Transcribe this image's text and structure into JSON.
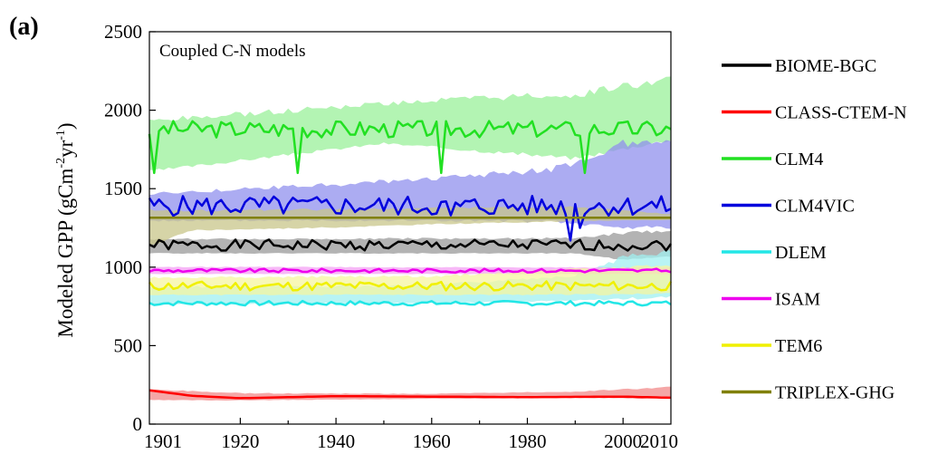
{
  "panel_label": "(a)",
  "chart_data": {
    "type": "line",
    "title": "",
    "inset_text": "Coupled C-N models",
    "ylabel": "Modeled GPP (gCm⁻²yr⁻¹)",
    "ylabel_parts": {
      "main": "Modeled GPP (gCm",
      "sup1": "-2",
      "mid": "yr",
      "sup2": "-1",
      "end": ")"
    },
    "xlabel": "",
    "xlim": [
      1901,
      2010
    ],
    "ylim": [
      0,
      2500
    ],
    "xticks": [
      1901,
      1920,
      1940,
      1960,
      1980,
      2000,
      2010
    ],
    "yticks": [
      0,
      500,
      1000,
      1500,
      2000,
      2500
    ],
    "grid": false,
    "legend_position": "right",
    "shaded_band": "range between model simulations",
    "series": [
      {
        "name": "BIOME-BGC",
        "color": "#000000",
        "band_color": "#9a9a9a",
        "base": 1140,
        "amp": 35,
        "seed": 1,
        "band": [
          [
            1901,
            1085,
            1185
          ],
          [
            1990,
            1085,
            1190
          ],
          [
            2000,
            1040,
            1230
          ],
          [
            2010,
            1060,
            1240
          ]
        ]
      },
      {
        "name": "CLASS-CTEM-N",
        "color": "#ff0000",
        "band_color": "#f28a8a",
        "curve": [
          [
            1901,
            215
          ],
          [
            1910,
            180
          ],
          [
            1920,
            165
          ],
          [
            1940,
            178
          ],
          [
            1960,
            175
          ],
          [
            1980,
            172
          ],
          [
            2000,
            175
          ],
          [
            2010,
            168
          ]
        ],
        "band": [
          [
            1901,
            150,
            225
          ],
          [
            1920,
            150,
            200
          ],
          [
            1960,
            160,
            195
          ],
          [
            1990,
            165,
            210
          ],
          [
            2010,
            160,
            240
          ]
        ]
      },
      {
        "name": "CLM4",
        "color": "#22e022",
        "band_color": "#99f099",
        "base": 1880,
        "amp": 55,
        "seed": 3,
        "dips": [
          [
            1902,
            1600
          ],
          [
            1932,
            1600
          ],
          [
            1962,
            1600
          ],
          [
            1992,
            1600
          ]
        ],
        "band": [
          [
            1901,
            1600,
            1950
          ],
          [
            1950,
            1780,
            2060
          ],
          [
            1990,
            1680,
            2130
          ],
          [
            2010,
            1800,
            2220
          ]
        ]
      },
      {
        "name": "CLM4VIC",
        "color": "#0000dd",
        "band_color": "#9090ee",
        "base": 1390,
        "amp": 65,
        "seed": 5,
        "dips": [
          [
            1964,
            1330
          ],
          [
            1989,
            1170
          ],
          [
            1991,
            1250
          ]
        ],
        "band": [
          [
            1901,
            1290,
            1480
          ],
          [
            1950,
            1290,
            1560
          ],
          [
            1985,
            1280,
            1640
          ],
          [
            2000,
            1230,
            1820
          ],
          [
            2010,
            1240,
            1860
          ]
        ]
      },
      {
        "name": "DLEM",
        "color": "#22e6e6",
        "band_color": "#a0f0f0",
        "base": 770,
        "amp": 15,
        "seed": 7,
        "band": [
          [
            1901,
            760,
            880
          ],
          [
            1960,
            770,
            890
          ],
          [
            1990,
            780,
            960
          ],
          [
            2000,
            790,
            1080
          ],
          [
            2010,
            800,
            1120
          ]
        ]
      },
      {
        "name": "ISAM",
        "color": "#ee00ee",
        "band_color": "#f4a0f4",
        "base": 978,
        "amp": 12,
        "seed": 9,
        "band": [
          [
            1901,
            955,
            1005
          ],
          [
            2010,
            955,
            1000
          ]
        ]
      },
      {
        "name": "TEM6",
        "color": "#f0f000",
        "band_color": "#f6f6a0",
        "base": 880,
        "amp": 30,
        "seed": 11,
        "band": [
          [
            1901,
            820,
            940
          ],
          [
            1960,
            820,
            950
          ],
          [
            2000,
            820,
            1010
          ],
          [
            2010,
            830,
            1020
          ]
        ]
      },
      {
        "name": "TRIPLEX-GHG",
        "color": "#808000",
        "band_color": "#c8c68a",
        "curve": [
          [
            1901,
            1315
          ],
          [
            2010,
            1315
          ]
        ],
        "band": [
          [
            1901,
            1130,
            1380
          ],
          [
            1910,
            1230,
            1370
          ],
          [
            1940,
            1250,
            1375
          ],
          [
            1960,
            1270,
            1385
          ],
          [
            1990,
            1290,
            1390
          ],
          [
            2010,
            1300,
            1340
          ]
        ]
      }
    ]
  }
}
